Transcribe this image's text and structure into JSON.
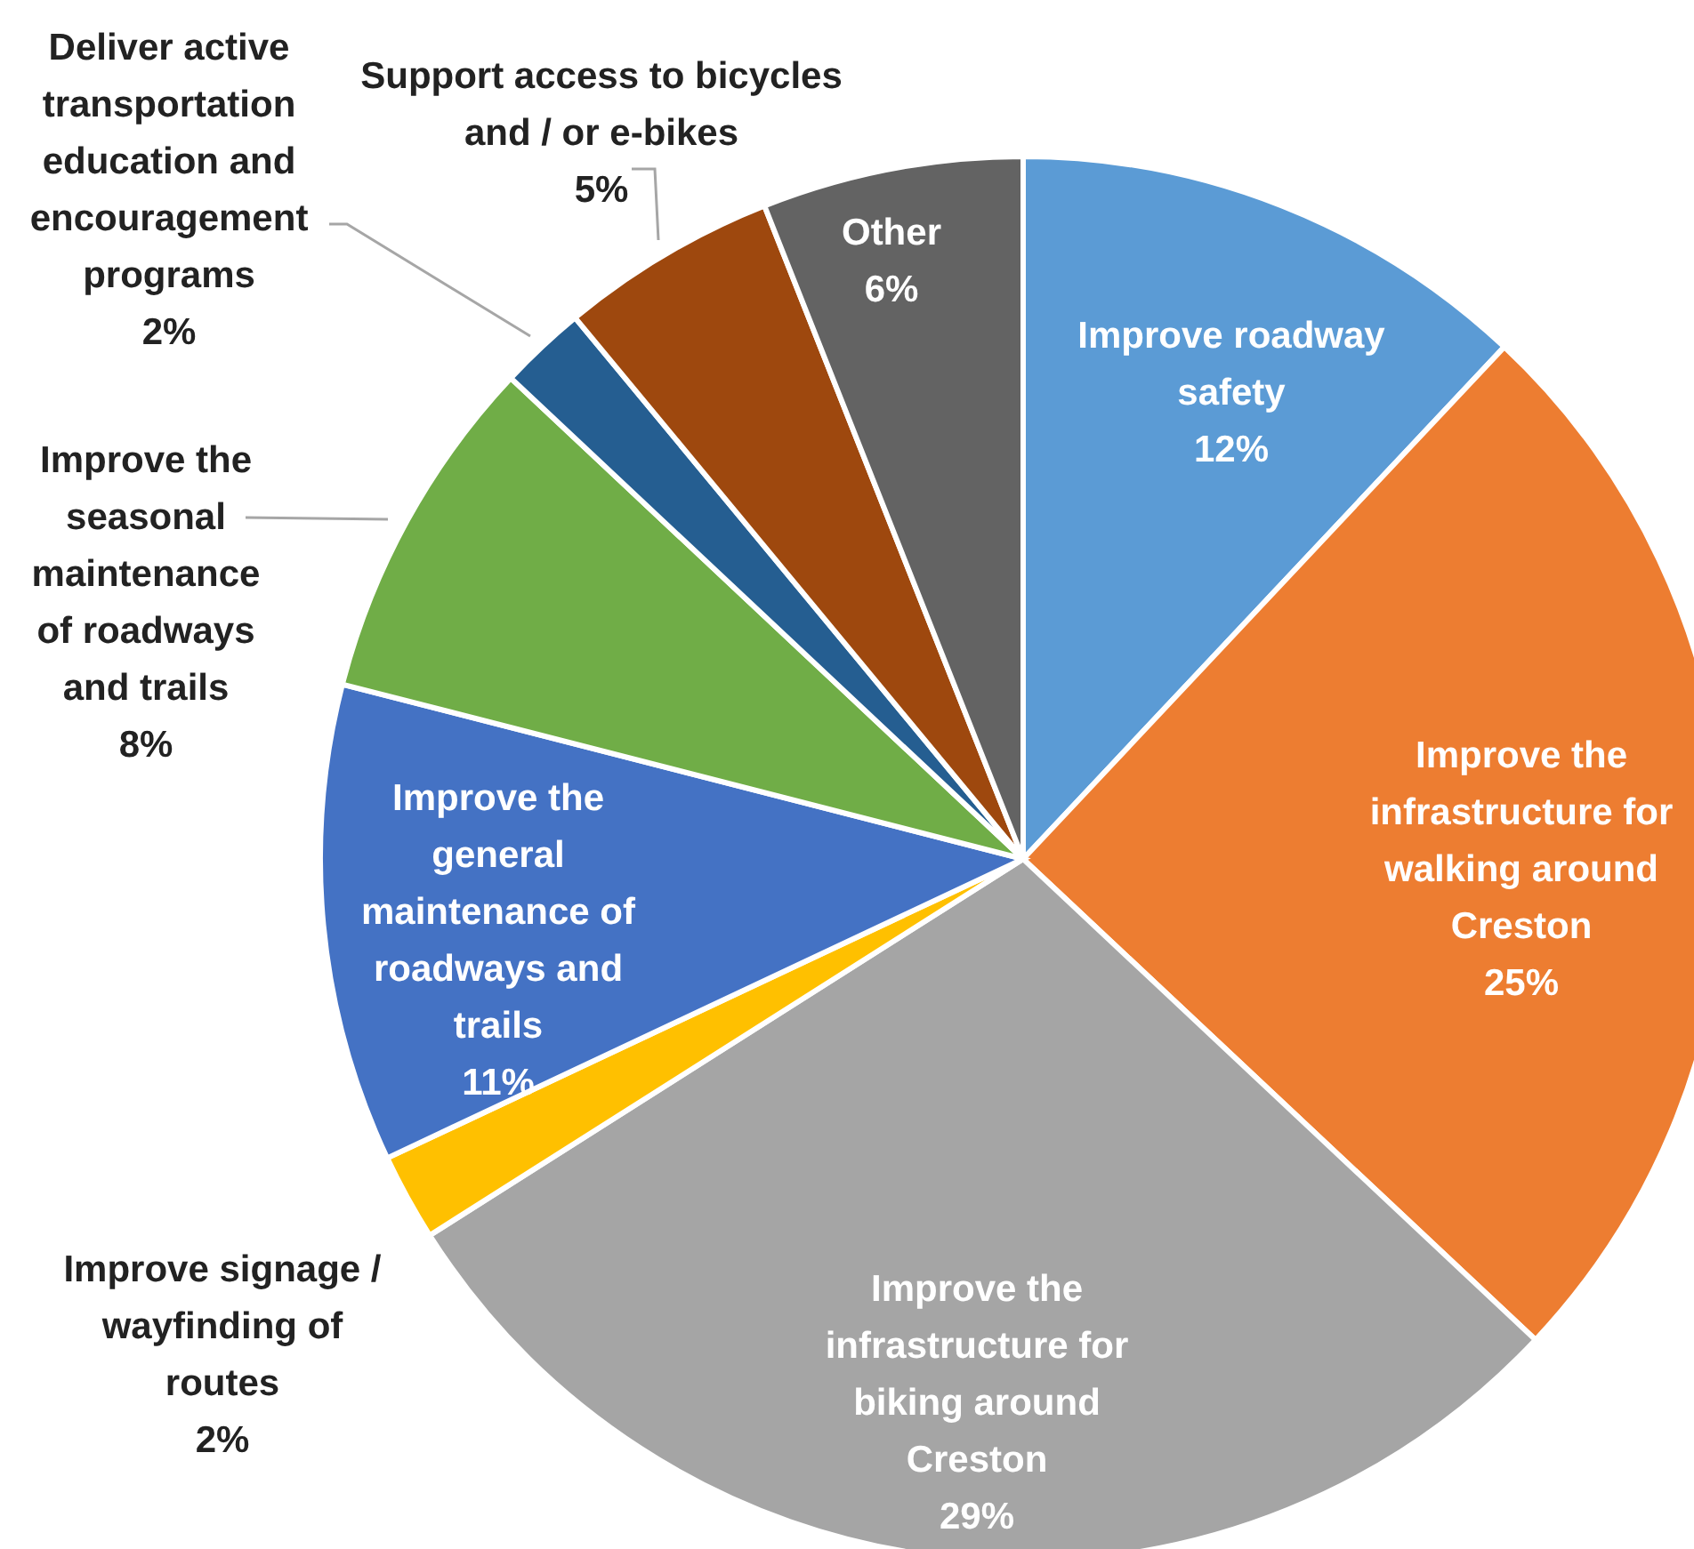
{
  "chart_data": {
    "type": "pie",
    "categories": [
      "Improve roadway safety",
      "Improve the infrastructure for walking around Creston",
      "Improve the infrastructure for biking around Creston",
      "Improve signage / wayfinding of routes",
      "Improve the general maintenance of roadways and trails",
      "Improve the seasonal maintenance of roadways and trails",
      "Deliver active transportation education and encouragement programs",
      "Support access to bicycles and / or e-bikes",
      "Other"
    ],
    "values": [
      12,
      25,
      29,
      2,
      11,
      8,
      2,
      5,
      6
    ],
    "value_labels": [
      "12%",
      "25%",
      "29%",
      "2%",
      "11%",
      "8%",
      "2%",
      "5%",
      "6%"
    ],
    "colors": [
      "#5b9bd5",
      "#ed7d31",
      "#a5a5a5",
      "#ffc000",
      "#4472c4",
      "#70ad47",
      "#255e91",
      "#9e480e",
      "#636363"
    ],
    "legend": false
  }
}
